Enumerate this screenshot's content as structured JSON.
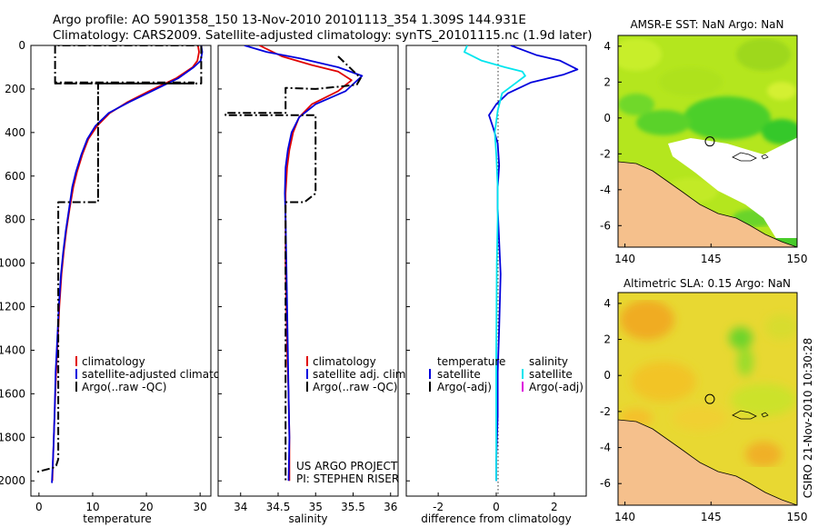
{
  "header": {
    "title_line1": "Argo profile: AO 5901358_150 13-Nov-2010 20101113_354 1.309S 144.931E",
    "title_line2": "Climatology: CARS2009. Satellite-adjusted climatology: synTS_20101115.nc (1.9d later)"
  },
  "side_label": "CSIRO 21-Nov-2010 10:30:28",
  "project_note": {
    "line1": "US ARGO PROJECT",
    "line2": "PI: STEPHEN RISER"
  },
  "colors": {
    "climatology": "#e00000",
    "satellite": "#0000dd",
    "argo": "#000000",
    "sal_satellite": "#00e5ee",
    "sal_argo": "#dd00dd",
    "land": "#f5c08c"
  },
  "chart_data": [
    {
      "type": "line",
      "title": "",
      "xlabel": "temperature",
      "ylabel": "",
      "xlim": [
        -1.5,
        32
      ],
      "ylim": [
        2070,
        0
      ],
      "xticks": [
        0,
        10,
        20,
        30
      ],
      "yticks": [
        0,
        200,
        400,
        600,
        800,
        1000,
        1200,
        1400,
        1600,
        1800,
        2000
      ],
      "legend": [
        "climatology",
        "satellite-adjusted climatology",
        "Argo(..raw -QC)"
      ],
      "series": [
        {
          "name": "climatology",
          "color": "#e00000",
          "x": [
            29.6,
            29.8,
            29.5,
            28.6,
            25.6,
            20.5,
            16.5,
            13.2,
            10.8,
            9.2,
            8.1,
            7.1,
            6.4,
            5.7,
            5.1,
            4.6,
            4.2,
            3.8,
            3.5,
            3.2,
            2.9,
            2.7,
            2.5
          ],
          "y": [
            0,
            30,
            70,
            100,
            150,
            210,
            260,
            310,
            370,
            430,
            500,
            580,
            650,
            750,
            850,
            950,
            1050,
            1200,
            1350,
            1500,
            1700,
            1850,
            2000
          ]
        },
        {
          "name": "satellite",
          "color": "#0000dd",
          "x": [
            30.2,
            30.4,
            30.1,
            28.8,
            26.0,
            21.0,
            16.8,
            13.0,
            10.5,
            9.0,
            7.9,
            6.9,
            6.2,
            5.6,
            5.0,
            4.5,
            4.1,
            3.7,
            3.4,
            3.1,
            2.9,
            2.7,
            2.4
          ],
          "y": [
            0,
            30,
            70,
            100,
            150,
            210,
            260,
            310,
            370,
            430,
            500,
            580,
            650,
            750,
            850,
            950,
            1050,
            1200,
            1350,
            1500,
            1700,
            1850,
            2010
          ]
        },
        {
          "name": "Argo",
          "color": "#000000",
          "x": [
            11.0,
            11.0,
            30.2,
            30.2,
            3.0,
            3.0,
            28.8,
            28.8,
            3.0,
            11.0,
            11.0,
            3.6,
            3.6,
            3.2,
            2.6,
            -0.5
          ],
          "y": [
            700,
            175,
            175,
            0,
            0,
            170,
            170,
            175,
            175,
            175,
            720,
            720,
            1900,
            1930,
            1940,
            1960
          ]
        }
      ]
    },
    {
      "type": "line",
      "title": "",
      "xlabel": "salinity",
      "ylabel": "",
      "xlim": [
        33.7,
        36.1
      ],
      "ylim": [
        2070,
        0
      ],
      "xticks": [
        34,
        34.5,
        35,
        35.5,
        36
      ],
      "legend": [
        "climatology",
        "satellite adj. clim.",
        "Argo(..raw -QC)"
      ],
      "series": [
        {
          "name": "climatology",
          "color": "#e00000",
          "x": [
            34.25,
            34.55,
            34.95,
            35.3,
            35.48,
            35.3,
            34.95,
            34.78,
            34.7,
            34.65,
            34.62,
            34.6,
            34.6,
            34.6,
            34.61,
            34.62,
            34.64,
            34.65,
            34.65
          ],
          "y": [
            0,
            50,
            90,
            120,
            160,
            210,
            270,
            330,
            400,
            480,
            560,
            680,
            800,
            1000,
            1200,
            1400,
            1600,
            1800,
            2000
          ]
        },
        {
          "name": "satellite",
          "color": "#0000dd",
          "x": [
            34.05,
            34.35,
            34.8,
            35.3,
            35.62,
            35.4,
            35.0,
            34.78,
            34.68,
            34.63,
            34.6,
            34.59,
            34.6,
            34.61,
            34.62,
            34.63,
            34.64,
            34.65,
            34.64
          ],
          "y": [
            0,
            30,
            60,
            100,
            140,
            210,
            270,
            330,
            400,
            480,
            560,
            680,
            800,
            1000,
            1200,
            1400,
            1600,
            1800,
            2000
          ]
        },
        {
          "name": "Argo",
          "color": "#000000",
          "x": [
            35.3,
            35.6,
            35.55,
            35.3,
            35.0,
            34.6,
            34.6,
            33.8,
            33.8,
            34.6,
            35.0,
            35.0,
            34.85,
            34.6,
            34.6
          ],
          "y": [
            50,
            150,
            180,
            190,
            200,
            195,
            310,
            310,
            320,
            320,
            320,
            680,
            720,
            720,
            2000
          ]
        }
      ]
    },
    {
      "type": "line",
      "title": "",
      "xlabel": "difference from climatology",
      "ylabel": "",
      "xlim": [
        -3.1,
        3.1
      ],
      "ylim": [
        2070,
        0
      ],
      "xticks": [
        -2,
        0,
        2
      ],
      "legend": [
        "temperature",
        "satellite",
        "Argo(-adj)",
        "salinity",
        "satellite",
        "Argo(-adj)"
      ],
      "series": [
        {
          "name": "temperature satellite",
          "color": "#0000dd",
          "x": [
            0.5,
            0.9,
            1.4,
            2.2,
            2.8,
            2.3,
            1.2,
            0.4,
            0.0,
            -0.25,
            -0.1,
            0.05,
            0.1,
            0.05,
            0.05,
            0.1,
            0.15,
            0.1,
            0.05,
            0.05,
            0.0,
            0.0
          ],
          "y": [
            0,
            20,
            45,
            70,
            110,
            135,
            170,
            220,
            270,
            320,
            380,
            450,
            550,
            650,
            750,
            900,
            1050,
            1300,
            1500,
            1700,
            1900,
            2000
          ]
        },
        {
          "name": "salinity satellite",
          "color": "#00e5ee",
          "x": [
            -1.0,
            -1.1,
            -0.5,
            0.3,
            0.9,
            1.0,
            0.7,
            0.2,
            0.05,
            -0.05,
            0.0,
            0.05,
            0.05,
            0.02,
            0.0,
            0.0,
            0.0
          ],
          "y": [
            0,
            30,
            70,
            100,
            120,
            140,
            170,
            220,
            300,
            400,
            500,
            650,
            800,
            1000,
            1400,
            1800,
            2000
          ]
        }
      ]
    },
    {
      "type": "heatmap",
      "title": "AMSR-E SST: NaN Argo: NaN",
      "xlim": [
        139.6,
        150
      ],
      "ylim": [
        -7.2,
        4.6
      ],
      "xticks": [
        140,
        145,
        150
      ],
      "yticks": [
        -6,
        -4,
        -2,
        0,
        2,
        4
      ],
      "marker": {
        "lon": 144.931,
        "lat": -1.309
      }
    },
    {
      "type": "heatmap",
      "title": "Altimetric SLA: 0.15 Argo: NaN",
      "xlim": [
        139.6,
        150
      ],
      "ylim": [
        -7.2,
        4.6
      ],
      "xticks": [
        140,
        145,
        150
      ],
      "yticks": [
        -6,
        -4,
        -2,
        0,
        2,
        4
      ],
      "marker": {
        "lon": 144.931,
        "lat": -1.309
      }
    }
  ]
}
